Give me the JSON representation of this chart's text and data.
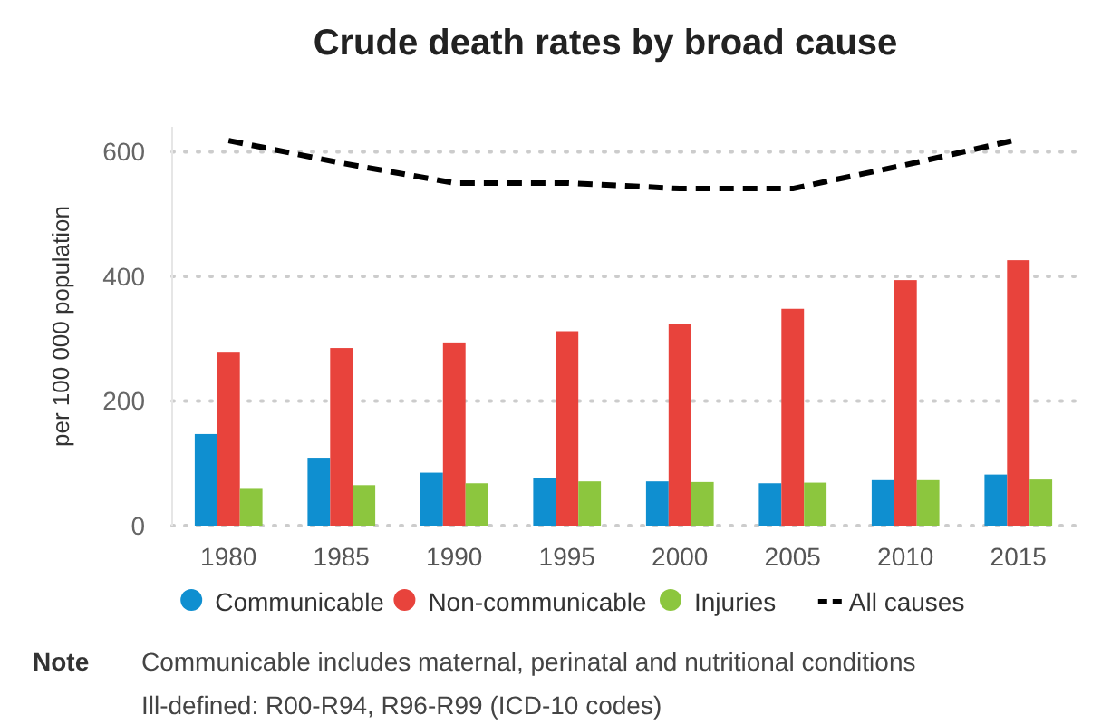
{
  "chart_data": {
    "type": "bar",
    "title": "Crude death rates by broad cause",
    "ylabel": "per 100 000 population",
    "categories": [
      "1980",
      "1985",
      "1990",
      "1995",
      "2000",
      "2005",
      "2010",
      "2015"
    ],
    "series": [
      {
        "name": "Communicable",
        "color": "#0f8fd0",
        "values": [
          147,
          109,
          85,
          76,
          71,
          68,
          73,
          82
        ]
      },
      {
        "name": "Non-communicable",
        "color": "#e8433c",
        "values": [
          279,
          285,
          294,
          312,
          324,
          348,
          394,
          426
        ]
      },
      {
        "name": "Injuries",
        "color": "#8cc63e",
        "values": [
          59,
          65,
          68,
          71,
          70,
          69,
          73,
          74
        ]
      },
      {
        "name": "All causes",
        "type": "line",
        "color": "#000000",
        "line_style": "dashed",
        "marker": "none",
        "values": [
          618,
          582,
          550,
          550,
          541,
          541,
          579,
          620
        ]
      }
    ],
    "ylim": [
      0,
      640
    ],
    "yticks": [
      0,
      200,
      400,
      600
    ],
    "grid": "y",
    "legend": "bottom",
    "annotations": [
      "Note",
      "Communicable includes maternal, perinatal and nutritional conditions",
      "Ill-defined: R00-R94, R96-R99 (ICD-10 codes)"
    ]
  }
}
